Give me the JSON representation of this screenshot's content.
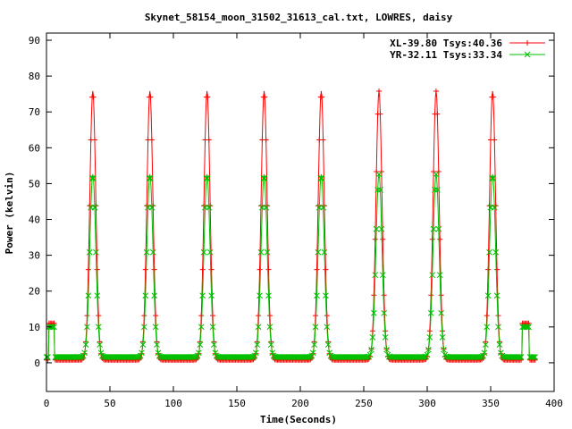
{
  "chart_data": {
    "type": "scatter",
    "title": "Skynet_58154_moon_31502_31613_cal.txt, LOWRES, daisy",
    "xlabel": "Time(Seconds)",
    "ylabel": "Power (kelvin)",
    "xlim": [
      0,
      400
    ],
    "ylim": [
      -8,
      92
    ],
    "xticks": [
      0,
      50,
      100,
      150,
      200,
      250,
      300,
      350,
      400
    ],
    "yticks": [
      0,
      10,
      20,
      30,
      40,
      50,
      60,
      70,
      80,
      90
    ],
    "grid": false,
    "legend_position": "top-right",
    "peaks": {
      "centers": [
        36.5,
        81.5,
        126.5,
        171.5,
        216.5,
        262,
        307,
        351.5
      ],
      "half_width_s": 3.2
    },
    "calibration_pulses": [
      {
        "x_start": 2,
        "x_end": 6
      },
      {
        "x_start": 375,
        "x_end": 380
      }
    ],
    "series": [
      {
        "name": "XL-39.80 Tsys:40.36",
        "color": "#ff0000",
        "marker": "+",
        "baseline": 0.8,
        "peak_amplitude": 75,
        "cal_level": 11
      },
      {
        "name": "YR-32.11 Tsys:33.34",
        "color": "#00c000",
        "marker": "x",
        "baseline": 1.6,
        "peak_amplitude": 51,
        "cal_level": 10
      }
    ],
    "x_end": 385
  }
}
